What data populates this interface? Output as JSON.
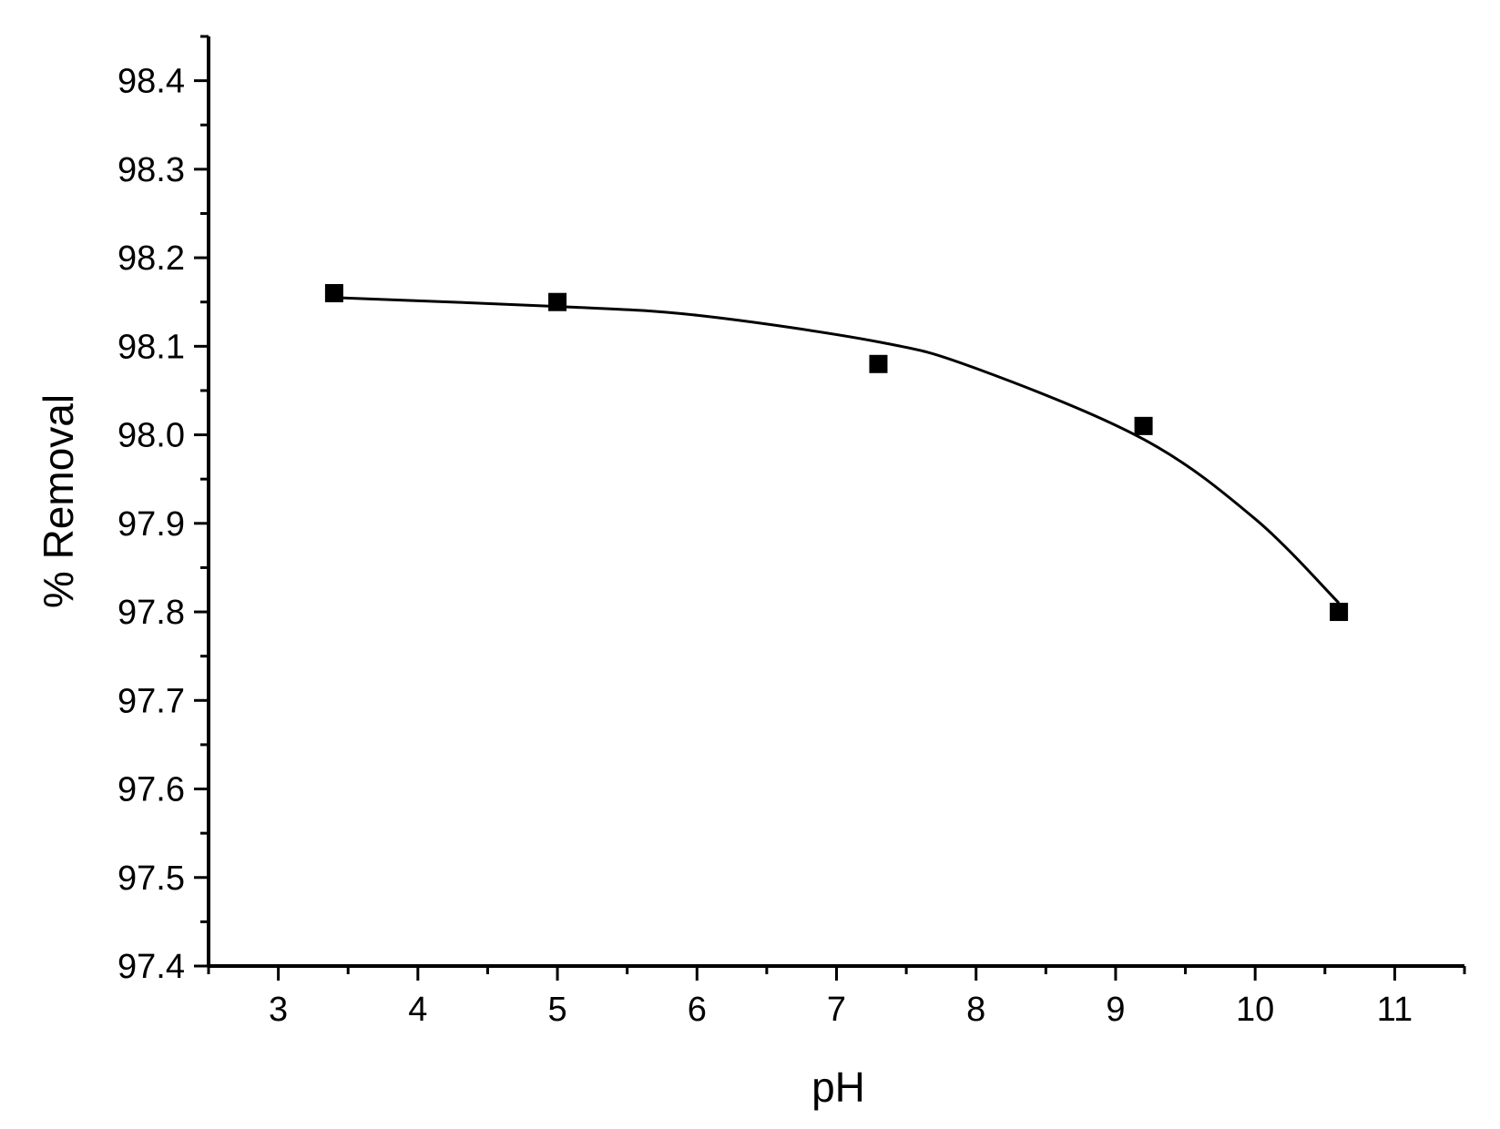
{
  "chart_data": {
    "type": "scatter",
    "title": "",
    "xlabel": "pH",
    "ylabel": "% Removal",
    "xlim": [
      2.5,
      11.5
    ],
    "ylim": [
      97.4,
      98.45
    ],
    "x_ticks": [
      3,
      4,
      5,
      6,
      7,
      8,
      9,
      10,
      11
    ],
    "x_tick_labels": [
      "3",
      "4",
      "5",
      "6",
      "7",
      "8",
      "9",
      "10",
      "11"
    ],
    "y_ticks": [
      97.4,
      97.5,
      97.6,
      97.7,
      97.8,
      97.9,
      98.0,
      98.1,
      98.2,
      98.3,
      98.4
    ],
    "y_tick_labels": [
      "97.4",
      "97.5",
      "97.6",
      "97.7",
      "97.8",
      "97.9",
      "98.0",
      "98.1",
      "98.2",
      "98.3",
      "98.4"
    ],
    "grid": false,
    "legend": "none",
    "series": [
      {
        "marker": "square",
        "color": "#000000",
        "x": [
          3.4,
          5.0,
          7.3,
          9.2,
          10.6
        ],
        "y": [
          98.16,
          98.15,
          98.08,
          98.01,
          97.8
        ]
      }
    ],
    "fit_curve": {
      "style": "smooth line",
      "color": "#000000",
      "x": [
        3.4,
        5.0,
        6.0,
        7.3,
        8.0,
        9.2,
        10.0,
        10.6
      ],
      "y": [
        98.155,
        98.145,
        98.135,
        98.105,
        98.075,
        97.995,
        97.905,
        97.81
      ]
    }
  }
}
